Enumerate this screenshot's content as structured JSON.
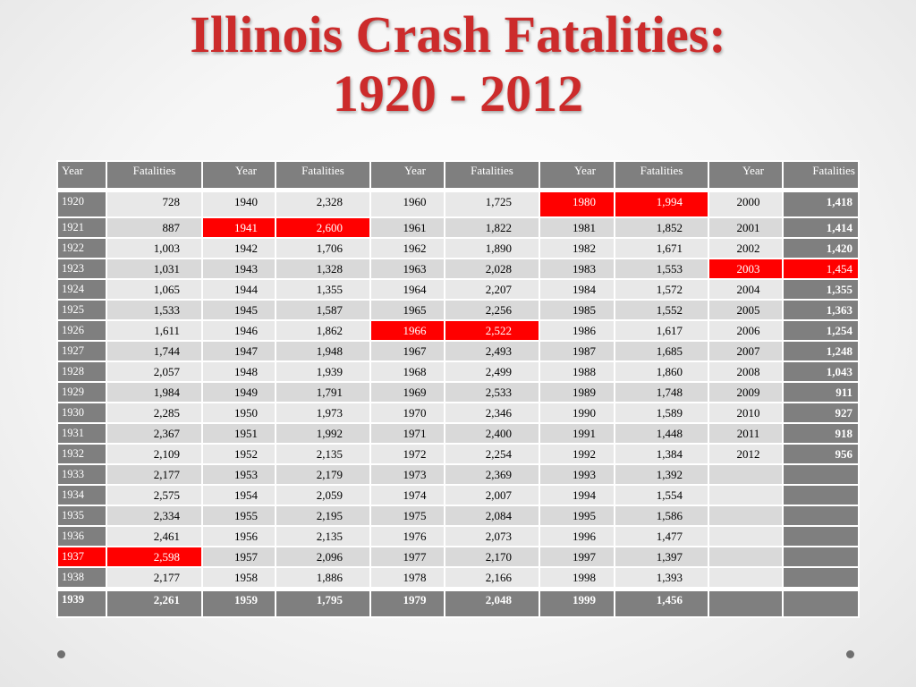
{
  "title_line1": "Illinois Crash Fatalities:",
  "title_line2": "1920 - 2012",
  "headers": [
    "Year",
    "Fatalities",
    "Year",
    "Fatalities",
    "Year",
    "Fatalities",
    "Year",
    "Fatalities",
    "Year",
    "Fatalities"
  ],
  "highlight_color": "#ff0000",
  "rows": [
    [
      "1920",
      "728",
      "1940",
      "2,328",
      "1960",
      "1,725",
      "1980",
      "1,994",
      "2000",
      "1,418"
    ],
    [
      "1921",
      "887",
      "1941",
      "2,600",
      "1961",
      "1,822",
      "1981",
      "1,852",
      "2001",
      "1,414"
    ],
    [
      "1922",
      "1,003",
      "1942",
      "1,706",
      "1962",
      "1,890",
      "1982",
      "1,671",
      "2002",
      "1,420"
    ],
    [
      "1923",
      "1,031",
      "1943",
      "1,328",
      "1963",
      "2,028",
      "1983",
      "1,553",
      "2003",
      "1,454"
    ],
    [
      "1924",
      "1,065",
      "1944",
      "1,355",
      "1964",
      "2,207",
      "1984",
      "1,572",
      "2004",
      "1,355"
    ],
    [
      "1925",
      "1,533",
      "1945",
      "1,587",
      "1965",
      "2,256",
      "1985",
      "1,552",
      "2005",
      "1,363"
    ],
    [
      "1926",
      "1,611",
      "1946",
      "1,862",
      "1966",
      "2,522",
      "1986",
      "1,617",
      "2006",
      "1,254"
    ],
    [
      "1927",
      "1,744",
      "1947",
      "1,948",
      "1967",
      "2,493",
      "1987",
      "1,685",
      "2007",
      "1,248"
    ],
    [
      "1928",
      "2,057",
      "1948",
      "1,939",
      "1968",
      "2,499",
      "1988",
      "1,860",
      "2008",
      "1,043"
    ],
    [
      "1929",
      "1,984",
      "1949",
      "1,791",
      "1969",
      "2,533",
      "1989",
      "1,748",
      "2009",
      "911"
    ],
    [
      "1930",
      "2,285",
      "1950",
      "1,973",
      "1970",
      "2,346",
      "1990",
      "1,589",
      "2010",
      "927"
    ],
    [
      "1931",
      "2,367",
      "1951",
      "1,992",
      "1971",
      "2,400",
      "1991",
      "1,448",
      "2011",
      "918"
    ],
    [
      "1932",
      "2,109",
      "1952",
      "2,135",
      "1972",
      "2,254",
      "1992",
      "1,384",
      "2012",
      "956"
    ],
    [
      "1933",
      "2,177",
      "1953",
      "2,179",
      "1973",
      "2,369",
      "1993",
      "1,392",
      "",
      ""
    ],
    [
      "1934",
      "2,575",
      "1954",
      "2,059",
      "1974",
      "2,007",
      "1994",
      "1,554",
      "",
      ""
    ],
    [
      "1935",
      "2,334",
      "1955",
      "2,195",
      "1975",
      "2,084",
      "1995",
      "1,586",
      "",
      ""
    ],
    [
      "1936",
      "2,461",
      "1956",
      "2,135",
      "1976",
      "2,073",
      "1996",
      "1,477",
      "",
      ""
    ],
    [
      "1937",
      "2,598",
      "1957",
      "2,096",
      "1977",
      "2,170",
      "1997",
      "1,397",
      "",
      ""
    ],
    [
      "1938",
      "2,177",
      "1958",
      "1,886",
      "1978",
      "2,166",
      "1998",
      "1,393",
      "",
      ""
    ],
    [
      "1939",
      "2,261",
      "1959",
      "1,795",
      "1979",
      "2,048",
      "1999",
      "1,456",
      "",
      ""
    ]
  ],
  "highlighted_years": [
    "1937",
    "1941",
    "1966",
    "1980",
    "2003"
  ]
}
